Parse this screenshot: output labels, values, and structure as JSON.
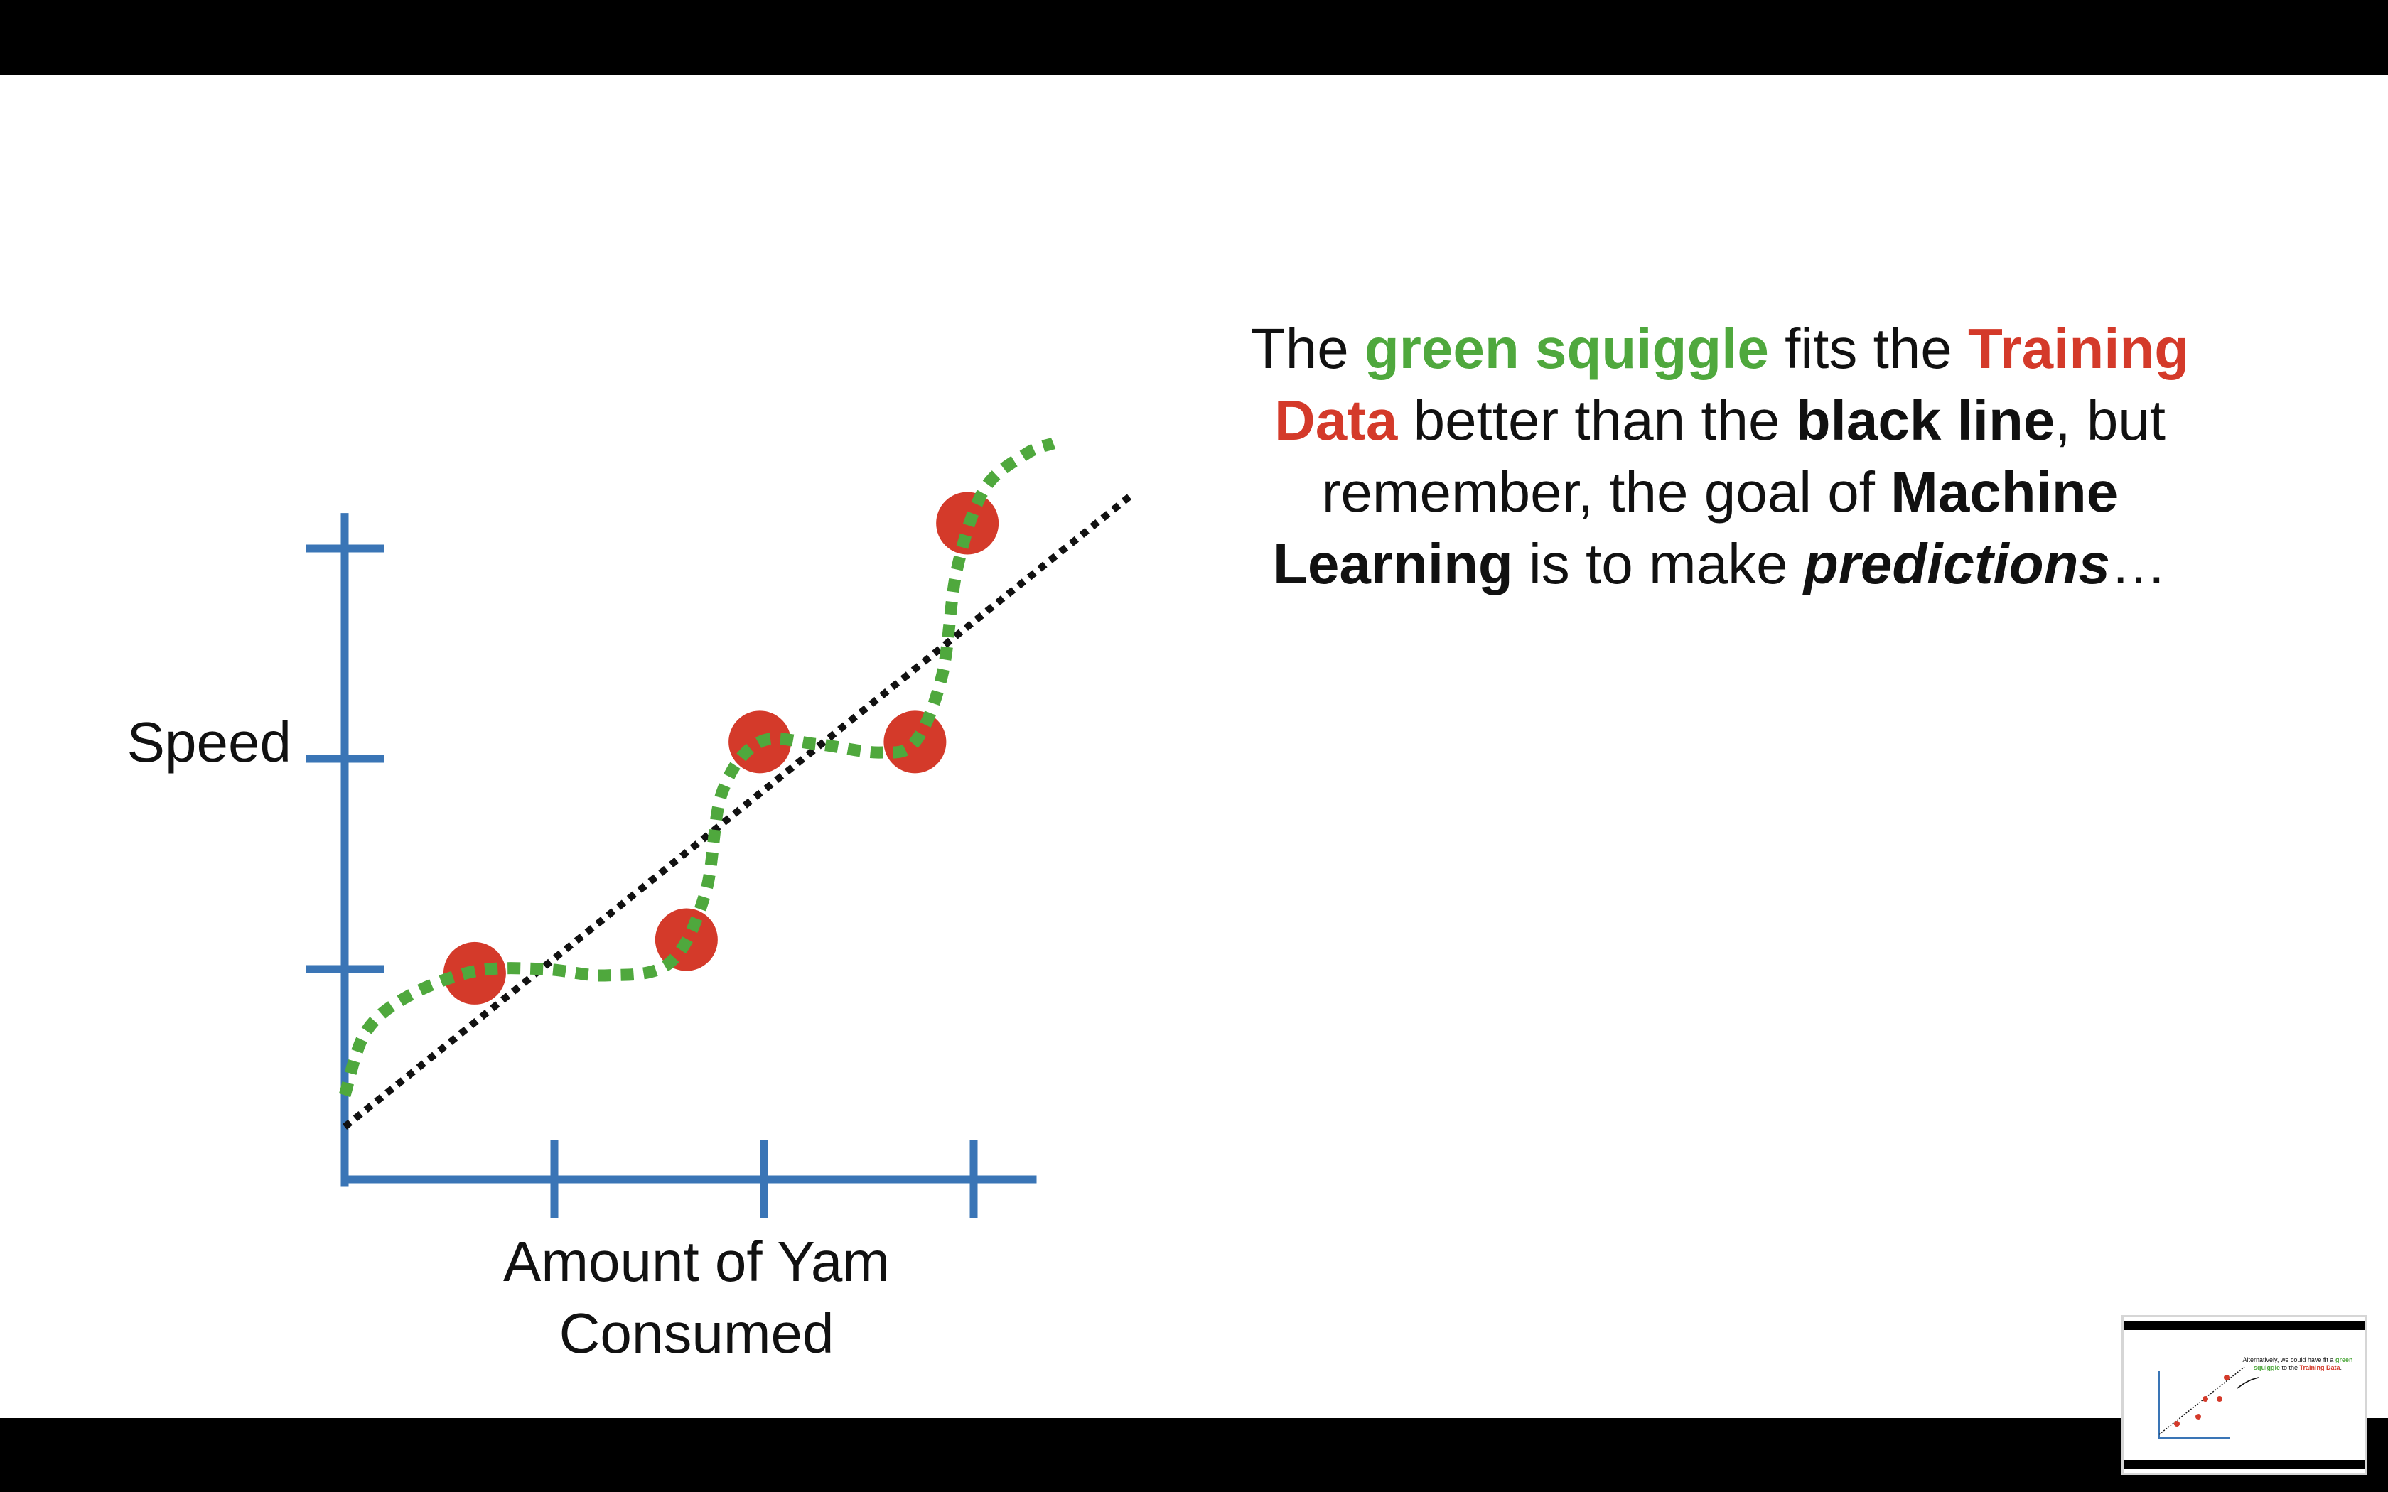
{
  "slide": {
    "caption": {
      "t1": "The ",
      "green_squiggle": "green squiggle",
      "t2": " fits the ",
      "training_data": "Training Data",
      "t3": " better than the ",
      "black_line": "black line",
      "t4": ", but remember, the goal of ",
      "machine_learning": "Machine Learning",
      "t5": " is to make ",
      "predictions": "predictions",
      "t6": "…"
    }
  },
  "chart_data": {
    "type": "scatter",
    "ylabel": "Speed",
    "xlabel_line1": "Amount of Yam",
    "xlabel_line2": "Consumed",
    "xlim": [
      0,
      3.5
    ],
    "ylim": [
      0,
      3.4
    ],
    "x_ticks": [
      1,
      2,
      3
    ],
    "y_ticks": [
      1,
      2,
      3
    ],
    "points": [
      {
        "x": 0.62,
        "y": 0.98
      },
      {
        "x": 1.63,
        "y": 1.14
      },
      {
        "x": 1.98,
        "y": 2.08
      },
      {
        "x": 2.72,
        "y": 2.08
      },
      {
        "x": 2.97,
        "y": 3.12
      }
    ],
    "black_line": {
      "style": "dotted",
      "color": "#111111",
      "from": {
        "x": 0,
        "y": 0.25
      },
      "to": {
        "x": 3.76,
        "y": 3.26
      }
    },
    "green_squiggle": {
      "style": "dashed",
      "color": "#4fa83d",
      "points": [
        {
          "x": 0.0,
          "y": 0.4
        },
        {
          "x": 0.1,
          "y": 0.7
        },
        {
          "x": 0.3,
          "y": 0.87
        },
        {
          "x": 0.62,
          "y": 0.99
        },
        {
          "x": 0.95,
          "y": 1.0
        },
        {
          "x": 1.25,
          "y": 0.97
        },
        {
          "x": 1.55,
          "y": 1.03
        },
        {
          "x": 1.72,
          "y": 1.36
        },
        {
          "x": 1.8,
          "y": 1.84
        },
        {
          "x": 1.98,
          "y": 2.08
        },
        {
          "x": 2.25,
          "y": 2.07
        },
        {
          "x": 2.55,
          "y": 2.03
        },
        {
          "x": 2.72,
          "y": 2.08
        },
        {
          "x": 2.85,
          "y": 2.4
        },
        {
          "x": 2.92,
          "y": 2.9
        },
        {
          "x": 3.05,
          "y": 3.28
        },
        {
          "x": 3.25,
          "y": 3.45
        },
        {
          "x": 3.38,
          "y": 3.5
        }
      ]
    },
    "axis_color": "#3a75b6",
    "point_color": "#d43a2a",
    "grid": false
  },
  "thumbnail": {
    "t1": "Alternatively, we could have fit a ",
    "green_squiggle": "green squiggle",
    "t2": " to the ",
    "training_data": "Training Data",
    "t3": "."
  }
}
